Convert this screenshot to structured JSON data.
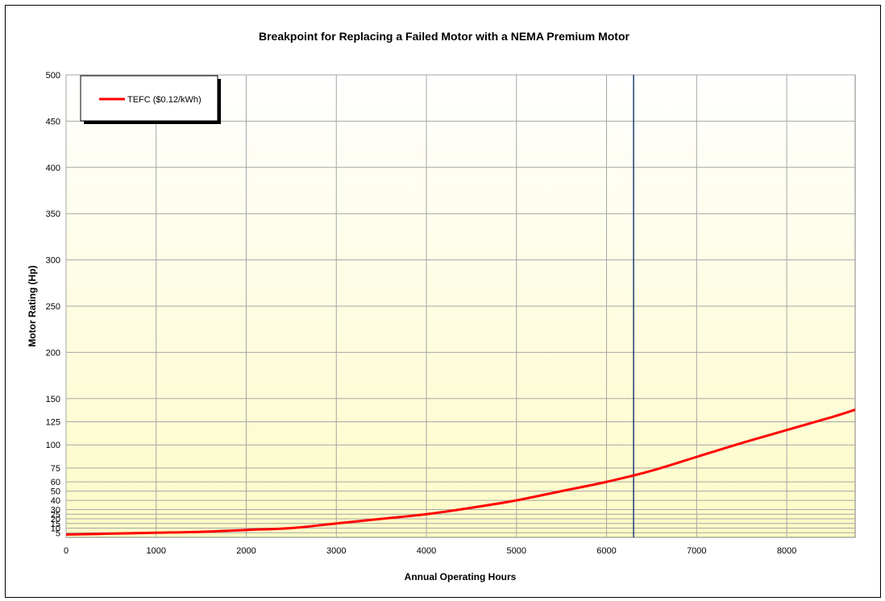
{
  "chart_data": {
    "type": "line",
    "title": "Breakpoint for Replacing a Failed Motor with a NEMA Premium Motor",
    "xlabel": "Annual Operating Hours",
    "ylabel": "Motor Rating (Hp)",
    "xlim": [
      0,
      8760
    ],
    "ylim": [
      0,
      500
    ],
    "x_ticks": [
      0,
      1000,
      2000,
      3000,
      4000,
      5000,
      6000,
      7000,
      8000
    ],
    "y_ticks": [
      5,
      10,
      15,
      20,
      25,
      30,
      40,
      50,
      60,
      75,
      100,
      125,
      150,
      200,
      250,
      300,
      350,
      400,
      450,
      500
    ],
    "grid": true,
    "legend_position": "top-left",
    "series": [
      {
        "name": "TEFC ($0.12/kWh)",
        "color": "#ff0000",
        "points": [
          [
            0,
            3
          ],
          [
            500,
            4
          ],
          [
            1000,
            5
          ],
          [
            1500,
            6
          ],
          [
            2000,
            8
          ],
          [
            2500,
            10
          ],
          [
            3000,
            15
          ],
          [
            3500,
            20
          ],
          [
            4000,
            25
          ],
          [
            4500,
            32
          ],
          [
            5000,
            40
          ],
          [
            5500,
            50
          ],
          [
            6000,
            60
          ],
          [
            6500,
            72
          ],
          [
            7000,
            87
          ],
          [
            7500,
            102
          ],
          [
            8000,
            116
          ],
          [
            8500,
            130
          ],
          [
            8760,
            138
          ]
        ]
      }
    ],
    "vertical_line": {
      "x": 6300,
      "color": "#1f3f73"
    }
  }
}
